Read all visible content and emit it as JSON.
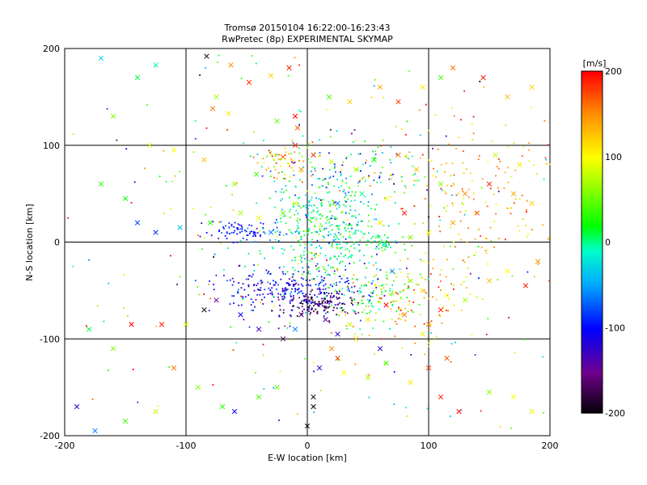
{
  "chart_data": {
    "type": "scatter",
    "title": "Tromsø 20150104 16:22:00-16:23:43",
    "subtitle": "RwPretec (8p) EXPERIMENTAL SKYMAP",
    "xlabel": "E-W location [km]",
    "ylabel": "N-S location [km]",
    "xlim": [
      -200,
      200
    ],
    "ylim": [
      -200,
      200
    ],
    "xticks": [
      "-200",
      "-100",
      "0",
      "100",
      "200"
    ],
    "yticks": [
      "-200",
      "-100",
      "0",
      "100",
      "200"
    ],
    "grid": true,
    "colorbar": {
      "label": "[m/s]",
      "range": [
        -200,
        200
      ],
      "ticks": [
        "200",
        "100",
        "0",
        "-100",
        "-200"
      ],
      "colormap": "rainbow (black-purple-blue-cyan-green-yellow-red)"
    },
    "markers": [
      "dot",
      "x"
    ],
    "series": [
      {
        "marker": "x",
        "points": [
          [
            -83,
            192,
            -190
          ],
          [
            -63,
            183,
            150
          ],
          [
            -48,
            165,
            185
          ],
          [
            -30,
            172,
            120
          ],
          [
            -15,
            180,
            190
          ],
          [
            -75,
            150,
            70
          ],
          [
            -78,
            138,
            160
          ],
          [
            -65,
            133,
            110
          ],
          [
            -25,
            125,
            55
          ],
          [
            -10,
            130,
            200
          ],
          [
            -8,
            118,
            170
          ],
          [
            18,
            150,
            40
          ],
          [
            35,
            145,
            120
          ],
          [
            60,
            160,
            140
          ],
          [
            75,
            145,
            180
          ],
          [
            95,
            160,
            110
          ],
          [
            110,
            170,
            40
          ],
          [
            120,
            180,
            160
          ],
          [
            145,
            170,
            190
          ],
          [
            165,
            150,
            130
          ],
          [
            185,
            160,
            120
          ],
          [
            -160,
            130,
            60
          ],
          [
            -140,
            170,
            10
          ],
          [
            -125,
            183,
            -10
          ],
          [
            -170,
            190,
            -30
          ],
          [
            -130,
            100,
            90
          ],
          [
            -110,
            95,
            100
          ],
          [
            -85,
            85,
            130
          ],
          [
            -60,
            60,
            60
          ],
          [
            -42,
            70,
            40
          ],
          [
            -20,
            88,
            170
          ],
          [
            -10,
            100,
            190
          ],
          [
            -5,
            75,
            150
          ],
          [
            5,
            90,
            185
          ],
          [
            20,
            83,
            80
          ],
          [
            40,
            75,
            70
          ],
          [
            55,
            85,
            20
          ],
          [
            75,
            90,
            160
          ],
          [
            90,
            75,
            130
          ],
          [
            110,
            60,
            60
          ],
          [
            130,
            50,
            150
          ],
          [
            150,
            60,
            190
          ],
          [
            170,
            50,
            140
          ],
          [
            185,
            40,
            120
          ],
          [
            175,
            80,
            110
          ],
          [
            155,
            90,
            80
          ],
          [
            140,
            30,
            170
          ],
          [
            120,
            20,
            140
          ],
          [
            100,
            10,
            100
          ],
          [
            85,
            5,
            60
          ],
          [
            -170,
            60,
            30
          ],
          [
            -150,
            45,
            20
          ],
          [
            -140,
            20,
            -80
          ],
          [
            -125,
            10,
            -90
          ],
          [
            -105,
            15,
            -40
          ],
          [
            -80,
            20,
            30
          ],
          [
            -55,
            30,
            70
          ],
          [
            -40,
            25,
            90
          ],
          [
            -30,
            10,
            -60
          ],
          [
            -20,
            30,
            50
          ],
          [
            -10,
            40,
            80
          ],
          [
            25,
            40,
            -60
          ],
          [
            45,
            50,
            0
          ],
          [
            65,
            45,
            100
          ],
          [
            80,
            30,
            190
          ],
          [
            60,
            20,
            110
          ],
          [
            -180,
            -90,
            10
          ],
          [
            -160,
            -110,
            60
          ],
          [
            -145,
            -85,
            200
          ],
          [
            -120,
            -85,
            190
          ],
          [
            -100,
            -85,
            90
          ],
          [
            -85,
            -70,
            -190
          ],
          [
            -75,
            -60,
            -150
          ],
          [
            -55,
            -75,
            -100
          ],
          [
            -40,
            -90,
            -130
          ],
          [
            -20,
            -100,
            -170
          ],
          [
            -10,
            -90,
            -60
          ],
          [
            -5,
            -75,
            -160
          ],
          [
            15,
            -80,
            -140
          ],
          [
            25,
            -95,
            -120
          ],
          [
            35,
            -85,
            80
          ],
          [
            50,
            -80,
            110
          ],
          [
            65,
            -65,
            200
          ],
          [
            80,
            -75,
            160
          ],
          [
            100,
            -85,
            150
          ],
          [
            110,
            -70,
            190
          ],
          [
            70,
            -30,
            -50
          ],
          [
            85,
            -40,
            60
          ],
          [
            95,
            -50,
            120
          ],
          [
            115,
            -55,
            100
          ],
          [
            130,
            -60,
            70
          ],
          [
            150,
            -40,
            130
          ],
          [
            165,
            -30,
            100
          ],
          [
            180,
            -45,
            190
          ],
          [
            190,
            -20,
            150
          ],
          [
            -110,
            -130,
            160
          ],
          [
            -90,
            -150,
            60
          ],
          [
            -70,
            -170,
            30
          ],
          [
            -60,
            -175,
            -110
          ],
          [
            -40,
            -160,
            40
          ],
          [
            -25,
            -150,
            50
          ],
          [
            5,
            -160,
            -190
          ],
          [
            5,
            -170,
            -200
          ],
          [
            10,
            -130,
            -130
          ],
          [
            25,
            -120,
            180
          ],
          [
            30,
            -135,
            100
          ],
          [
            50,
            -140,
            70
          ],
          [
            65,
            -125,
            40
          ],
          [
            85,
            -145,
            110
          ],
          [
            100,
            -130,
            180
          ],
          [
            110,
            -160,
            190
          ],
          [
            125,
            -175,
            200
          ],
          [
            150,
            -155,
            60
          ],
          [
            170,
            -160,
            100
          ],
          [
            185,
            -175,
            90
          ],
          [
            -190,
            -170,
            -120
          ],
          [
            -175,
            -195,
            -60
          ],
          [
            -150,
            -185,
            40
          ],
          [
            -125,
            -175,
            80
          ],
          [
            0,
            -190,
            -200
          ],
          [
            20,
            -110,
            150
          ],
          [
            40,
            -100,
            120
          ],
          [
            60,
            -110,
            -120
          ],
          [
            95,
            -95,
            90
          ],
          [
            115,
            -120,
            170
          ]
        ]
      }
    ]
  }
}
